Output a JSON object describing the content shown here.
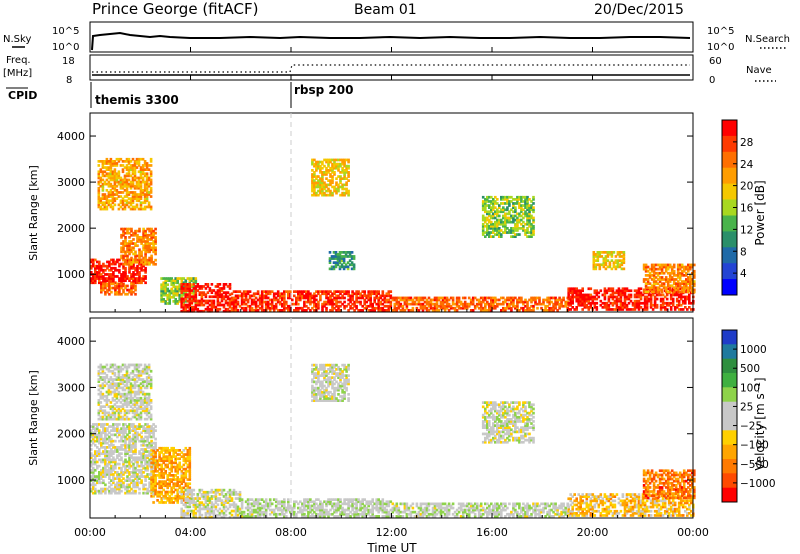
{
  "header": {
    "station": "Prince George (fitACF)",
    "beam": "Beam 01",
    "date": "20/Dec/2015"
  },
  "strips": {
    "nsky_label": "N.Sky",
    "nsky_ticks": [
      "10^5",
      "10^0"
    ],
    "nsearch_label": "N.Search",
    "nsearch_ticks": [
      "10^5",
      "10^0"
    ],
    "freq_label": "Freq.",
    "freq_unit": "[MHz]",
    "freq_ticks": [
      "18",
      "8"
    ],
    "nave_label": "Nave",
    "nave_ticks": [
      "60",
      "0"
    ],
    "cpid_label": "CPID",
    "cpid_segments": [
      {
        "name": "themis 3300",
        "start_hour": 0
      },
      {
        "name": "rbsp 200",
        "start_hour": 8
      }
    ]
  },
  "panels": {
    "ylabel": "Slant Range [km]",
    "xlabel": "Time UT",
    "y_ticks": [
      "1000",
      "2000",
      "3000",
      "4000"
    ],
    "x_ticks": [
      "00:00",
      "04:00",
      "08:00",
      "12:00",
      "16:00",
      "20:00",
      "00:00"
    ]
  },
  "power_colorbar": {
    "label": "Power [dB]",
    "ticks": [
      "28",
      "24",
      "20",
      "16",
      "12",
      "8",
      "4"
    ],
    "colors": [
      "#ff0000",
      "#ff3a00",
      "#ff6f00",
      "#ff9d00",
      "#f5c800",
      "#a8d820",
      "#49b34b",
      "#2a8f6a",
      "#1f6aa8",
      "#2344d4",
      "#0000ff"
    ]
  },
  "velocity_colorbar": {
    "label": "Velocity [m s⁻¹]",
    "ticks": [
      "1000",
      "500",
      "100",
      "25",
      "−25",
      "−100",
      "−500",
      "−1000"
    ],
    "colors": [
      "#1f3cc8",
      "#1f7a9e",
      "#2f8f3f",
      "#3fb040",
      "#8ed34a",
      "#c8c8c8",
      "#c8c8c8",
      "#ffd000",
      "#ffa500",
      "#ff7a00",
      "#ff4a00",
      "#ff0000"
    ]
  },
  "chart_data": [
    {
      "type": "heatmap",
      "title": "Power",
      "xlabel": "Time UT",
      "ylabel": "Slant Range [km]",
      "xlim": [
        0,
        24
      ],
      "ylim": [
        180,
        4500
      ],
      "colorbar_label": "Power [dB]",
      "colorbar_range": [
        0,
        30
      ],
      "regions": [
        {
          "t0": 0.0,
          "t1": 2.2,
          "r0": 800,
          "r1": 1300,
          "level": 28
        },
        {
          "t0": 1.2,
          "t1": 2.6,
          "r0": 1200,
          "r1": 2000,
          "level": 22
        },
        {
          "t0": 0.3,
          "t1": 2.4,
          "r0": 2400,
          "r1": 3500,
          "level": 20
        },
        {
          "t0": 0.4,
          "t1": 1.8,
          "r0": 550,
          "r1": 800,
          "level": 24
        },
        {
          "t0": 2.8,
          "t1": 4.2,
          "r0": 350,
          "r1": 900,
          "level": 14
        },
        {
          "t0": 3.6,
          "t1": 5.6,
          "r0": 180,
          "r1": 800,
          "level": 28
        },
        {
          "t0": 5.6,
          "t1": 12.0,
          "r0": 200,
          "r1": 650,
          "level": 27
        },
        {
          "t0": 12.0,
          "t1": 19.0,
          "r0": 200,
          "r1": 500,
          "level": 24
        },
        {
          "t0": 19.0,
          "t1": 24.0,
          "r0": 220,
          "r1": 700,
          "level": 28
        },
        {
          "t0": 22.0,
          "t1": 24.0,
          "r0": 600,
          "r1": 1200,
          "level": 22
        },
        {
          "t0": 8.8,
          "t1": 10.3,
          "r0": 2700,
          "r1": 3500,
          "level": 18
        },
        {
          "t0": 15.6,
          "t1": 17.6,
          "r0": 1800,
          "r1": 2700,
          "level": 14
        },
        {
          "t0": 9.5,
          "t1": 10.5,
          "r0": 1100,
          "r1": 1500,
          "level": 10
        },
        {
          "t0": 20.0,
          "t1": 21.2,
          "r0": 1100,
          "r1": 1500,
          "level": 18
        }
      ]
    },
    {
      "type": "heatmap",
      "title": "Velocity",
      "xlabel": "Time UT",
      "ylabel": "Slant Range [km]",
      "xlim": [
        0,
        24
      ],
      "ylim": [
        180,
        4500
      ],
      "colorbar_label": "Velocity [m s⁻¹]",
      "colorbar_range": [
        -1000,
        1000
      ],
      "regions": [
        {
          "t0": 0.0,
          "t1": 2.6,
          "r0": 700,
          "r1": 2200,
          "level": 0
        },
        {
          "t0": 0.3,
          "t1": 2.4,
          "r0": 2300,
          "r1": 3500,
          "level": 0
        },
        {
          "t0": 2.4,
          "t1": 4.0,
          "r0": 500,
          "r1": 1700,
          "level": -400
        },
        {
          "t0": 3.6,
          "t1": 6.0,
          "r0": 180,
          "r1": 800,
          "level": 0
        },
        {
          "t0": 6.0,
          "t1": 12.0,
          "r0": 200,
          "r1": 600,
          "level": 80
        },
        {
          "t0": 12.0,
          "t1": 19.0,
          "r0": 200,
          "r1": 500,
          "level": 60
        },
        {
          "t0": 19.0,
          "t1": 24.0,
          "r0": 220,
          "r1": 700,
          "level": -300
        },
        {
          "t0": 22.0,
          "t1": 24.0,
          "r0": 600,
          "r1": 1200,
          "level": -600
        },
        {
          "t0": 8.8,
          "t1": 10.3,
          "r0": 2700,
          "r1": 3500,
          "level": 0
        },
        {
          "t0": 15.6,
          "t1": 17.6,
          "r0": 1800,
          "r1": 2700,
          "level": 0
        }
      ]
    }
  ]
}
